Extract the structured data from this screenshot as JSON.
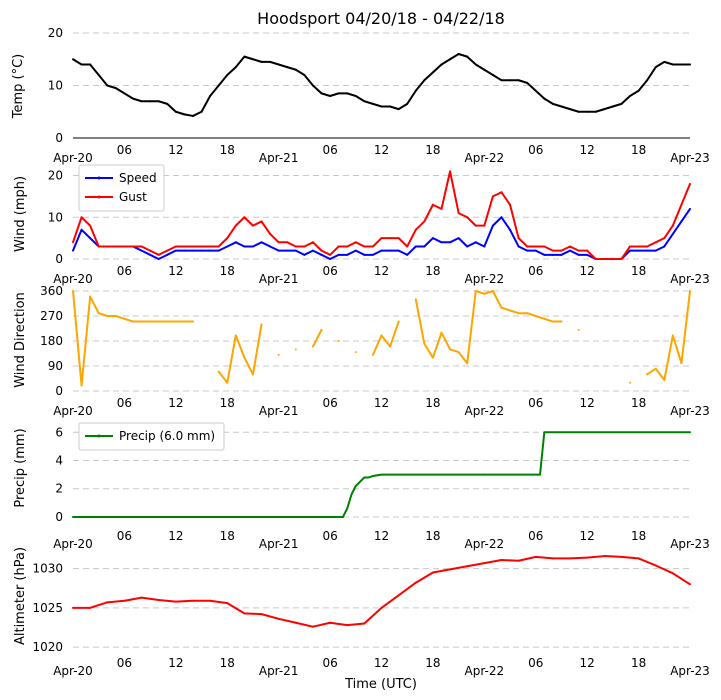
{
  "chart_data": {
    "type": "line",
    "title": "Hoodsport 04/20/18 - 04/22/18",
    "xlabel": "Time (UTC)",
    "x_range_hours": [
      0,
      72
    ],
    "x_ticks": [
      {
        "hour": 0,
        "label": "Apr-20"
      },
      {
        "hour": 6,
        "label": "06"
      },
      {
        "hour": 12,
        "label": "12"
      },
      {
        "hour": 18,
        "label": "18"
      },
      {
        "hour": 24,
        "label": "Apr-21"
      },
      {
        "hour": 30,
        "label": "06"
      },
      {
        "hour": 36,
        "label": "12"
      },
      {
        "hour": 42,
        "label": "18"
      },
      {
        "hour": 48,
        "label": "Apr-22"
      },
      {
        "hour": 54,
        "label": "06"
      },
      {
        "hour": 60,
        "label": "12"
      },
      {
        "hour": 66,
        "label": "18"
      },
      {
        "hour": 72,
        "label": "Apr-23"
      }
    ],
    "panels": [
      {
        "id": "temp",
        "ylabel": "Temp ($^\\circ$C)",
        "ylabel_display": "Temp (°C)",
        "ylim": [
          0,
          20
        ],
        "yticks": [
          0,
          10,
          20
        ],
        "grid": true,
        "legend": null,
        "series": [
          {
            "name": "Temp",
            "color": "#000000",
            "x": [
              0,
              1,
              2,
              3,
              4,
              5,
              6,
              7,
              8,
              9,
              10,
              11,
              12,
              13,
              14,
              15,
              16,
              17,
              18,
              19,
              20,
              21,
              22,
              23,
              24,
              25,
              26,
              27,
              28,
              29,
              30,
              31,
              32,
              33,
              34,
              35,
              36,
              37,
              38,
              39,
              40,
              41,
              42,
              43,
              44,
              45,
              46,
              47,
              48,
              49,
              50,
              51,
              52,
              53,
              54,
              55,
              56,
              57,
              58,
              59,
              60,
              61,
              62,
              63,
              64,
              65,
              66,
              67,
              68,
              69,
              70,
              71,
              72
            ],
            "y": [
              15,
              14,
              14,
              12,
              10,
              9.5,
              8.5,
              7.5,
              7,
              7,
              7,
              6.5,
              5,
              4.5,
              4.2,
              5,
              8,
              10,
              12,
              13.5,
              15.5,
              15,
              14.5,
              14.5,
              14,
              13.5,
              13,
              12,
              10,
              8.5,
              8,
              8.5,
              8.5,
              8,
              7,
              6.5,
              6,
              6,
              5.5,
              6.5,
              9,
              11,
              12.5,
              14,
              15,
              16,
              15.5,
              14,
              13,
              12,
              11,
              11,
              11,
              10.5,
              9,
              7.5,
              6.5,
              6,
              5.5,
              5,
              5,
              5,
              5.5,
              6,
              6.5,
              8,
              9,
              11,
              13.5,
              14.5,
              14,
              14,
              14
            ]
          }
        ]
      },
      {
        "id": "wind",
        "ylabel": "Wind (mph)",
        "ylim": [
          0,
          23
        ],
        "yticks": [
          0,
          10,
          20
        ],
        "grid": true,
        "legend": {
          "placement": "top-left",
          "entries": [
            "Speed",
            "Gust"
          ]
        },
        "series": [
          {
            "name": "Speed",
            "color": "#0000ff",
            "x": [
              0,
              1,
              2,
              3,
              4,
              5,
              6,
              7,
              8,
              9,
              10,
              11,
              12,
              13,
              14,
              15,
              16,
              17,
              18,
              19,
              20,
              21,
              22,
              23,
              24,
              25,
              26,
              27,
              28,
              29,
              30,
              31,
              32,
              33,
              34,
              35,
              36,
              37,
              38,
              39,
              40,
              41,
              42,
              43,
              44,
              45,
              46,
              47,
              48,
              49,
              50,
              51,
              52,
              53,
              54,
              55,
              56,
              57,
              58,
              59,
              60,
              61,
              62,
              63,
              64,
              65,
              66,
              67,
              68,
              69,
              70,
              71,
              72
            ],
            "y": [
              2,
              7,
              5,
              3,
              3,
              3,
              3,
              3,
              2,
              1,
              0,
              1,
              2,
              2,
              2,
              2,
              2,
              2,
              3,
              4,
              3,
              3,
              4,
              3,
              2,
              2,
              2,
              1,
              2,
              1,
              0,
              1,
              1,
              2,
              1,
              1,
              2,
              2,
              2,
              1,
              3,
              3,
              5,
              4,
              4,
              5,
              3,
              4,
              3,
              8,
              10,
              7,
              3,
              2,
              2,
              1,
              1,
              1,
              2,
              1,
              1,
              0,
              0,
              0,
              0,
              2,
              2,
              2,
              2,
              3,
              6,
              9,
              12
            ]
          },
          {
            "name": "Gust",
            "color": "#ff0000",
            "x": [
              0,
              1,
              2,
              3,
              4,
              5,
              6,
              7,
              8,
              9,
              10,
              11,
              12,
              13,
              14,
              15,
              16,
              17,
              18,
              19,
              20,
              21,
              22,
              23,
              24,
              25,
              26,
              27,
              28,
              29,
              30,
              31,
              32,
              33,
              34,
              35,
              36,
              37,
              38,
              39,
              40,
              41,
              42,
              43,
              44,
              45,
              46,
              47,
              48,
              49,
              50,
              51,
              52,
              53,
              54,
              55,
              56,
              57,
              58,
              59,
              60,
              61,
              62,
              63,
              64,
              65,
              66,
              67,
              68,
              69,
              70,
              71,
              72
            ],
            "y": [
              4,
              10,
              8,
              3,
              3,
              3,
              3,
              3,
              3,
              2,
              1,
              2,
              3,
              3,
              3,
              3,
              3,
              3,
              5,
              8,
              10,
              8,
              9,
              6,
              4,
              4,
              3,
              3,
              4,
              2,
              1,
              3,
              3,
              4,
              3,
              3,
              5,
              5,
              5,
              3,
              7,
              9,
              13,
              12,
              21,
              11,
              10,
              8,
              8,
              15,
              16,
              13,
              5,
              3,
              3,
              3,
              2,
              2,
              3,
              2,
              2,
              0,
              0,
              0,
              0,
              3,
              3,
              3,
              4,
              5,
              8,
              13,
              18
            ]
          }
        ]
      },
      {
        "id": "direction",
        "ylabel": "Wind Direction",
        "ylim": [
          0,
          360
        ],
        "yticks": [
          0,
          90,
          180,
          270,
          360
        ],
        "grid": true,
        "legend": null,
        "series": [
          {
            "name": "Direction",
            "color": "#ffa500",
            "x": [
              0,
              1,
              2,
              3,
              4,
              5,
              6,
              7,
              8,
              9,
              10,
              11,
              12,
              13,
              14,
              15,
              16,
              17,
              18,
              19,
              20,
              21,
              22,
              23,
              24,
              25,
              26,
              27,
              28,
              29,
              30,
              31,
              32,
              33,
              34,
              35,
              36,
              37,
              38,
              39,
              40,
              41,
              42,
              43,
              44,
              45,
              46,
              47,
              48,
              49,
              50,
              51,
              52,
              53,
              54,
              55,
              56,
              57,
              58,
              59,
              60,
              61,
              62,
              63,
              64,
              65,
              66,
              67,
              68,
              69,
              70,
              71,
              72
            ],
            "y": [
              360,
              20,
              340,
              280,
              270,
              270,
              260,
              250,
              250,
              250,
              250,
              250,
              250,
              250,
              250,
              null,
              null,
              70,
              30,
              200,
              120,
              60,
              240,
              null,
              130,
              null,
              150,
              null,
              160,
              220,
              null,
              180,
              null,
              140,
              null,
              130,
              200,
              160,
              250,
              null,
              330,
              170,
              120,
              210,
              150,
              140,
              100,
              360,
              350,
              360,
              300,
              290,
              280,
              280,
              270,
              260,
              250,
              250,
              null,
              220,
              null,
              null,
              null,
              null,
              null,
              30,
              null,
              60,
              80,
              40,
              200,
              100,
              360
            ]
          }
        ]
      },
      {
        "id": "precip",
        "ylabel": "Precip (mm)",
        "ylim": [
          -0.5,
          6.8
        ],
        "yticks": [
          0,
          2,
          4,
          6
        ],
        "grid": true,
        "legend": {
          "placement": "top-left",
          "entries": [
            "Precip (6.0 mm)"
          ]
        },
        "series": [
          {
            "name": "Precip (6.0 mm)",
            "color": "#008000",
            "x": [
              0,
              31.5,
              32.0,
              32.5,
              33.0,
              34.0,
              34.5,
              35.0,
              36.0,
              48.0,
              54.5,
              55.0,
              72.0
            ],
            "y": [
              0,
              0,
              0.6,
              1.6,
              2.2,
              2.8,
              2.8,
              2.9,
              3.0,
              3.0,
              3.0,
              6.0,
              6.0
            ]
          }
        ]
      },
      {
        "id": "pressure",
        "ylabel": "Altimeter (hPa)",
        "ylim": [
          1019.5,
          1032.5
        ],
        "yticks": [
          1020,
          1025,
          1030
        ],
        "grid": true,
        "legend": null,
        "series": [
          {
            "name": "Altimeter",
            "color": "#ff0000",
            "x": [
              0,
              2,
              4,
              6,
              8,
              10,
              12,
              14,
              16,
              18,
              20,
              22,
              24,
              26,
              28,
              30,
              32,
              34,
              36,
              38,
              40,
              42,
              44,
              46,
              48,
              50,
              52,
              54,
              56,
              58,
              60,
              62,
              64,
              66,
              68,
              70,
              72
            ],
            "y": [
              1025,
              1025,
              1025.7,
              1025.9,
              1026.3,
              1026,
              1025.8,
              1025.9,
              1025.9,
              1025.6,
              1024.3,
              1024.2,
              1023.6,
              1023.1,
              1022.6,
              1023.1,
              1022.8,
              1023,
              1025,
              1026.6,
              1028.2,
              1029.5,
              1029.9,
              1030.3,
              1030.7,
              1031.1,
              1031,
              1031.5,
              1031.3,
              1031.3,
              1031.4,
              1031.6,
              1031.5,
              1031.3,
              1030.4,
              1029.4,
              1028
            ]
          }
        ]
      }
    ]
  }
}
